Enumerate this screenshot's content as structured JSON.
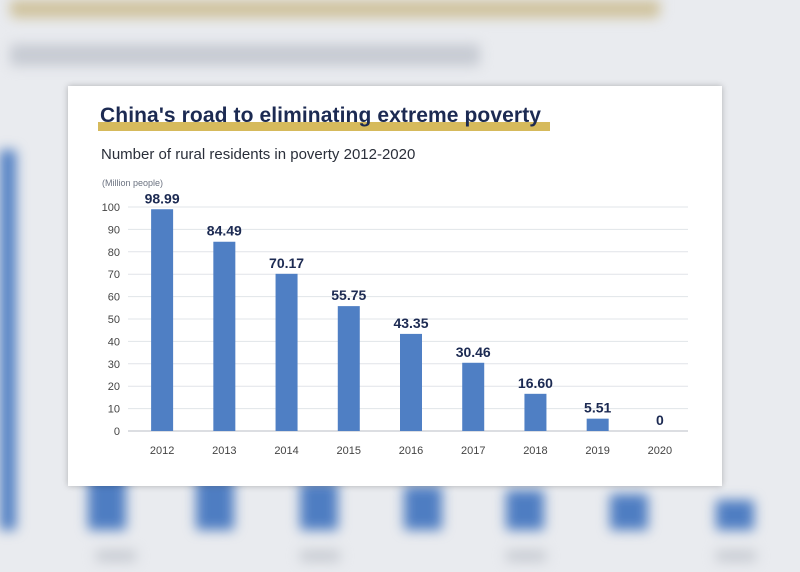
{
  "chart_data": {
    "type": "bar",
    "title": "China's road to eliminating extreme poverty",
    "subtitle": "Number of rural residents in poverty 2012-2020",
    "ylabel": "(Million people)",
    "xlabel": "",
    "categories": [
      "2012",
      "2013",
      "2014",
      "2015",
      "2016",
      "2017",
      "2018",
      "2019",
      "2020"
    ],
    "values": [
      98.99,
      84.49,
      70.17,
      55.75,
      43.35,
      30.46,
      16.6,
      5.51,
      0
    ],
    "value_labels": [
      "98.99",
      "84.49",
      "70.17",
      "55.75",
      "43.35",
      "30.46",
      "16.60",
      "5.51",
      "0"
    ],
    "ylim": [
      0,
      100
    ],
    "yticks": [
      0,
      10,
      20,
      30,
      40,
      50,
      60,
      70,
      80,
      90,
      100
    ],
    "grid": true,
    "legend": "none",
    "bar_color": "#4f7fc4",
    "title_highlight_color": "#d2b24a"
  }
}
